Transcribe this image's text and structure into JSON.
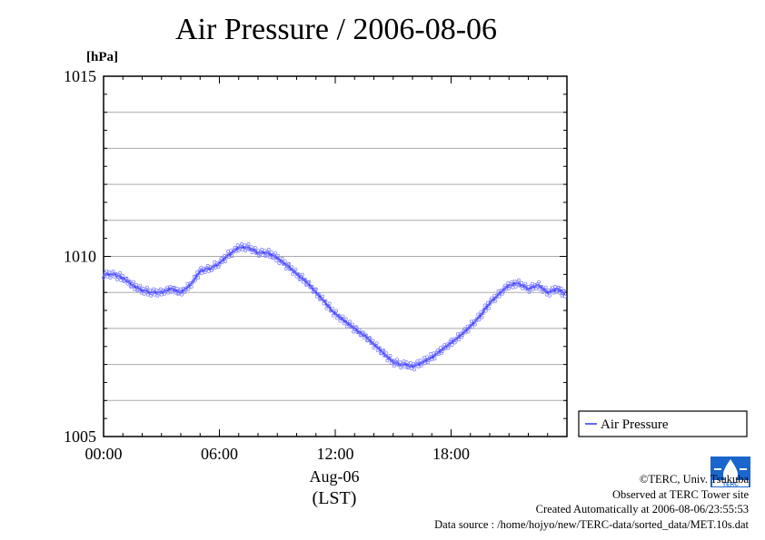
{
  "title": "Air Pressure / 2006-08-06",
  "unit_label": "[hPa]",
  "date_label": "Aug-06",
  "tz_label": "(LST)",
  "legend_label": "Air Pressure",
  "credits": {
    "line1": "©TERC, Univ. Tsukuba",
    "line2": "Observed at TERC Tower site",
    "line3": "Created Automatically at 2006-08-06/23:55:53",
    "line4": "Data source : /home/hojyo/new/TERC-data/sorted_data/MET.10s.dat"
  },
  "logo_text": "TERC",
  "colors": {
    "series": "#3333ff",
    "marker": "#7777ff",
    "grid": "#aaaaaa"
  },
  "chart_data": {
    "type": "line",
    "title": "Air Pressure / 2006-08-06",
    "xlabel": "Aug-06 (LST)",
    "ylabel": "[hPa]",
    "xlim": [
      0,
      24
    ],
    "ylim": [
      1005,
      1015
    ],
    "x_ticks": [
      0,
      6,
      12,
      18
    ],
    "x_tick_labels": [
      "00:00",
      "06:00",
      "12:00",
      "18:00"
    ],
    "y_ticks": [
      1005,
      1010,
      1015
    ],
    "y_tick_labels": [
      "1005",
      "1010",
      "1015"
    ],
    "grid": true,
    "legend": "right, below plot area",
    "series": [
      {
        "name": "Air Pressure",
        "x": [
          0,
          0.5,
          1,
          1.5,
          2,
          2.5,
          3,
          3.5,
          4,
          4.5,
          5,
          5.5,
          6,
          6.5,
          7,
          7.5,
          8,
          8.5,
          9,
          9.5,
          10,
          10.5,
          11,
          11.5,
          12,
          12.5,
          13,
          13.5,
          14,
          14.5,
          15,
          15.5,
          16,
          16.5,
          17,
          17.5,
          18,
          18.5,
          19,
          19.5,
          20,
          20.5,
          21,
          21.5,
          22,
          22.5,
          23,
          23.5,
          23.9
        ],
        "y": [
          1009.5,
          1009.5,
          1009.4,
          1009.2,
          1009.05,
          1009.0,
          1009.0,
          1009.1,
          1009.0,
          1009.2,
          1009.6,
          1009.65,
          1009.8,
          1010.05,
          1010.25,
          1010.25,
          1010.1,
          1010.1,
          1009.95,
          1009.75,
          1009.5,
          1009.3,
          1009.0,
          1008.7,
          1008.4,
          1008.2,
          1008.0,
          1007.8,
          1007.55,
          1007.3,
          1007.05,
          1007.0,
          1006.95,
          1007.05,
          1007.2,
          1007.4,
          1007.6,
          1007.8,
          1008.05,
          1008.35,
          1008.7,
          1008.95,
          1009.2,
          1009.25,
          1009.1,
          1009.2,
          1009.0,
          1009.1,
          1008.95
        ]
      }
    ]
  }
}
